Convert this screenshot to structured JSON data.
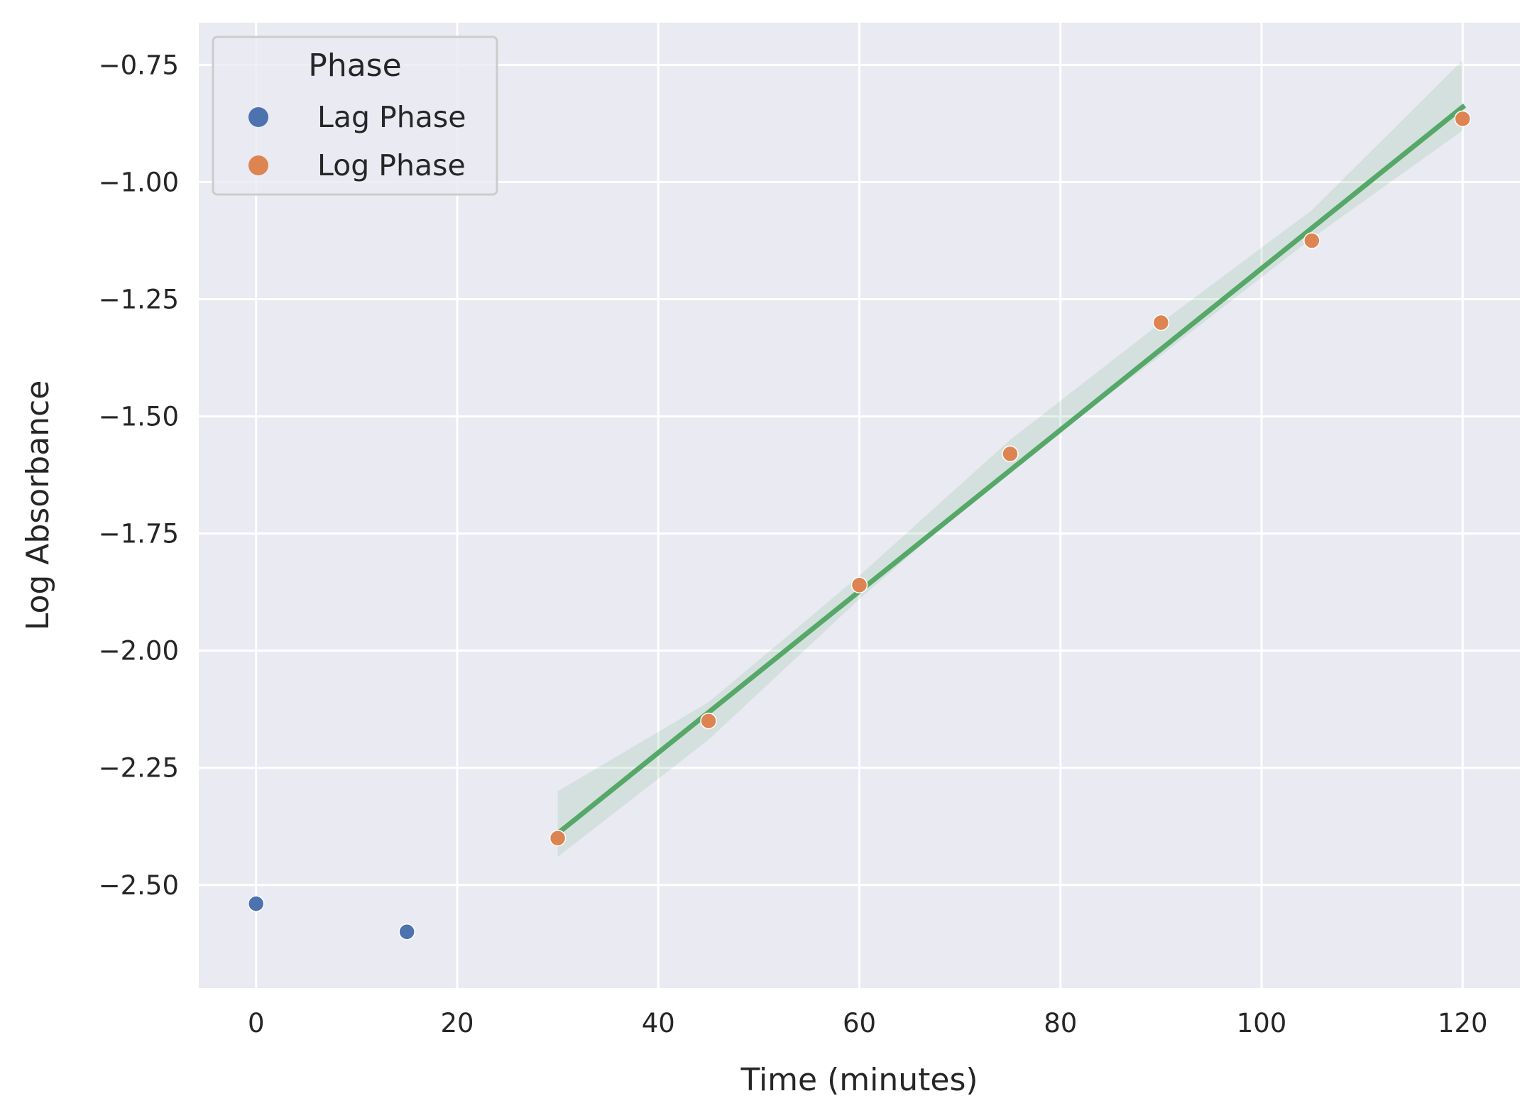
{
  "chart_data": {
    "type": "scatter",
    "xlabel": "Time (minutes)",
    "ylabel": "Log Absorbance",
    "xlim": [
      -5.7,
      125.7
    ],
    "ylim": [
      -2.72,
      -0.66
    ],
    "xticks": [
      0,
      20,
      40,
      60,
      80,
      100,
      120
    ],
    "xtick_labels": [
      "0",
      "20",
      "40",
      "60",
      "80",
      "100",
      "120"
    ],
    "yticks": [
      -0.75,
      -1.0,
      -1.25,
      -1.5,
      -1.75,
      -2.0,
      -2.25,
      -2.5
    ],
    "ytick_labels": [
      "−0.75",
      "−1.00",
      "−1.25",
      "−1.50",
      "−1.75",
      "−2.00",
      "−2.25",
      "−2.50"
    ],
    "grid": true,
    "background_color": "#eaeaf2",
    "legend": {
      "title": "Phase",
      "placement": "top-left"
    },
    "series": [
      {
        "name": "Lag Phase",
        "color": "#4c72b0",
        "x": [
          0,
          15
        ],
        "y": [
          -2.54,
          -2.6
        ]
      },
      {
        "name": "Log Phase",
        "color": "#dd8452",
        "x": [
          30,
          45,
          60,
          75,
          90,
          105,
          120
        ],
        "y": [
          -2.4,
          -2.15,
          -1.86,
          -1.58,
          -1.3,
          -1.125,
          -0.865
        ]
      }
    ],
    "fit": {
      "color": "#55a868",
      "x": [
        30,
        120
      ],
      "y": [
        -2.39,
        -0.84
      ],
      "ci_upper": [
        [
          30,
          -2.3
        ],
        [
          45,
          -2.11
        ],
        [
          60,
          -1.84
        ],
        [
          75,
          -1.55
        ],
        [
          90,
          -1.3
        ],
        [
          105,
          -1.06
        ],
        [
          120,
          -0.74
        ]
      ],
      "ci_lower": [
        [
          30,
          -2.44
        ],
        [
          45,
          -2.19
        ],
        [
          60,
          -1.89
        ],
        [
          75,
          -1.61
        ],
        [
          90,
          -1.37
        ],
        [
          105,
          -1.12
        ],
        [
          120,
          -0.89
        ]
      ]
    }
  }
}
